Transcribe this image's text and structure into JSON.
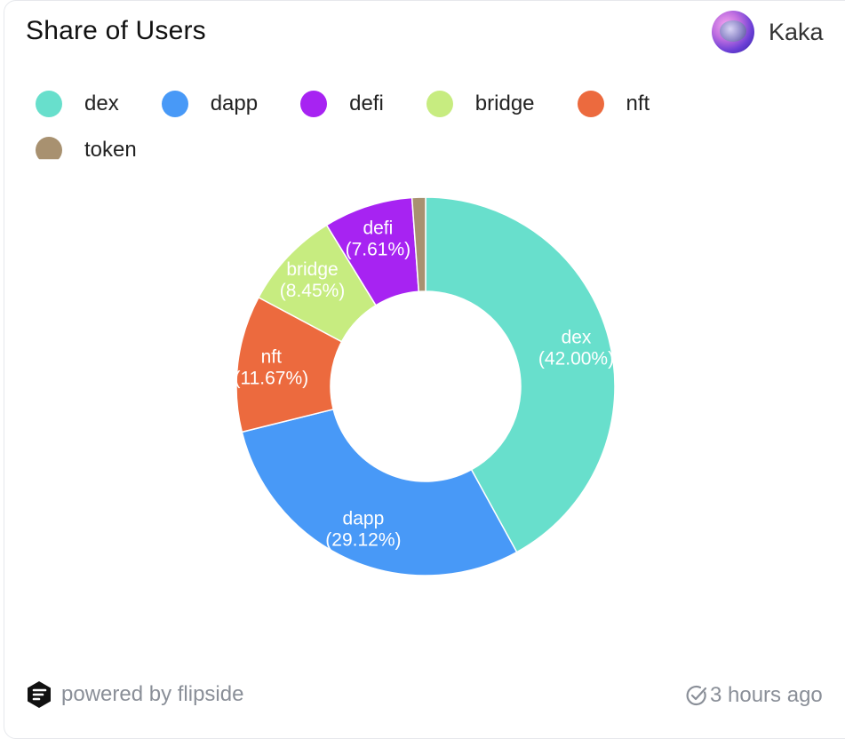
{
  "header": {
    "title": "Share of Users",
    "user_name": "Kaka"
  },
  "footer": {
    "powered_by": "powered by flipside",
    "updated": "3 hours ago"
  },
  "icons": {
    "brand": "flipside-logo-icon",
    "updated": "check-clock-icon"
  },
  "colors": {
    "dex": "#68DFCC",
    "dapp": "#4899F7",
    "defi": "#A723F2",
    "bridge": "#C7EC80",
    "nft": "#EC6A3E",
    "token": "#A89170"
  },
  "chart_data": {
    "type": "pie",
    "variant": "donut",
    "title": "Share of Users",
    "legend_position": "top-left",
    "slices": [
      {
        "name": "dex",
        "value": 42.0,
        "label": "(42.00%)",
        "color": "#68DFCC"
      },
      {
        "name": "dapp",
        "value": 29.12,
        "label": "(29.12%)",
        "color": "#4899F7"
      },
      {
        "name": "nft",
        "value": 11.67,
        "label": "(11.67%)",
        "color": "#EC6A3E"
      },
      {
        "name": "bridge",
        "value": 8.45,
        "label": "(8.45%)",
        "color": "#C7EC80"
      },
      {
        "name": "defi",
        "value": 7.61,
        "label": "(7.61%)",
        "color": "#A723F2"
      },
      {
        "name": "token",
        "value": 1.15,
        "label": "",
        "color": "#A89170"
      }
    ],
    "legend": [
      "dex",
      "dapp",
      "defi",
      "bridge",
      "nft",
      "token"
    ]
  }
}
